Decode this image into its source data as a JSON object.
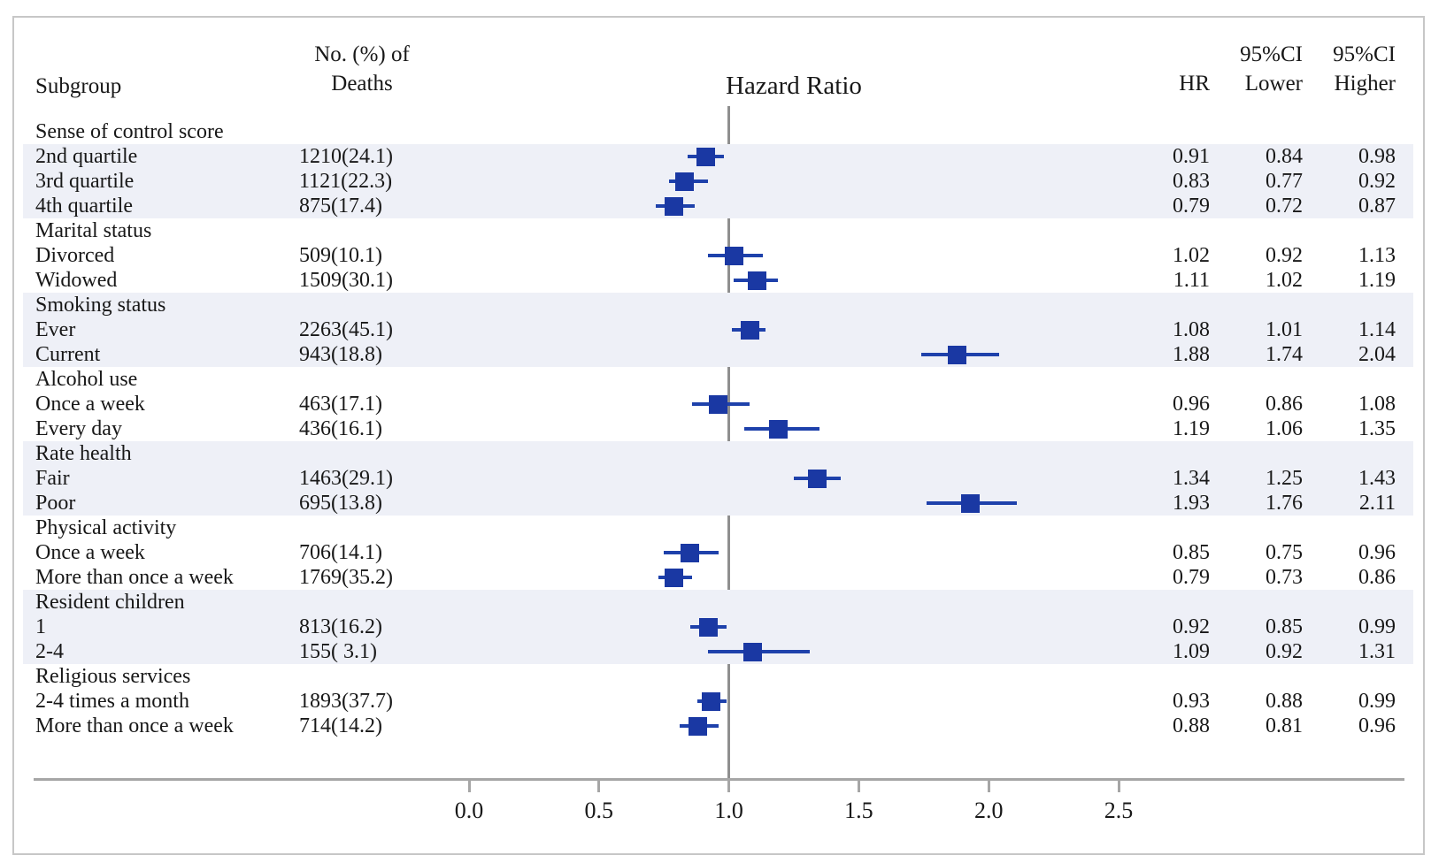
{
  "columns": {
    "subgroup": "Subgroup",
    "deaths_line1": "No. (%) of",
    "deaths_line2": "Deaths",
    "hr": "HR",
    "ci": "95%CI",
    "lower": "Lower",
    "higher": "Higher"
  },
  "chart_data": {
    "type": "forest",
    "title": "Hazard Ratio",
    "x_axis": {
      "tick_labels": [
        "0.0",
        "0.5",
        "1.0",
        "1.5",
        "2.0",
        "2.5"
      ],
      "tick_values": [
        0,
        0.5,
        1.0,
        1.5,
        2.0,
        2.5
      ],
      "range_shown": [
        -0.85,
        2.6
      ],
      "reference_line": 1.0
    },
    "colors": {
      "marker": "#1a38a3",
      "ci_line": "#1e41ab",
      "stripe": "#eef0f7",
      "axis": "#a6a6a6",
      "reference_line": "#8f8f8f",
      "text": "#181818",
      "frame_border": "#c7c7c7"
    },
    "rows": [
      {
        "label": "Sense of control score",
        "group": true
      },
      {
        "label": "2nd quartile",
        "deaths": "1210(24.1)",
        "hr": "0.91",
        "lower": "0.84",
        "higher": "0.98"
      },
      {
        "label": "3rd quartile",
        "deaths": "1121(22.3)",
        "hr": "0.83",
        "lower": "0.77",
        "higher": "0.92"
      },
      {
        "label": "4th quartile",
        "deaths": "875(17.4)",
        "hr": "0.79",
        "lower": "0.72",
        "higher": "0.87"
      },
      {
        "label": "Marital status",
        "group": true
      },
      {
        "label": "Divorced",
        "deaths": "509(10.1)",
        "hr": "1.02",
        "lower": "0.92",
        "higher": "1.13"
      },
      {
        "label": "Widowed",
        "deaths": "1509(30.1)",
        "hr": "1.11",
        "lower": "1.02",
        "higher": "1.19"
      },
      {
        "label": "Smoking status",
        "group": true
      },
      {
        "label": "Ever",
        "deaths": "2263(45.1)",
        "hr": "1.08",
        "lower": "1.01",
        "higher": "1.14"
      },
      {
        "label": "Current",
        "deaths": "943(18.8)",
        "hr": "1.88",
        "lower": "1.74",
        "higher": "2.04"
      },
      {
        "label": "Alcohol use",
        "group": true
      },
      {
        "label": "Once a week",
        "deaths": "463(17.1)",
        "hr": "0.96",
        "lower": "0.86",
        "higher": "1.08"
      },
      {
        "label": "Every day",
        "deaths": "436(16.1)",
        "hr": "1.19",
        "lower": "1.06",
        "higher": "1.35"
      },
      {
        "label": "Rate health",
        "group": true
      },
      {
        "label": "Fair",
        "deaths": "1463(29.1)",
        "hr": "1.34",
        "lower": "1.25",
        "higher": "1.43"
      },
      {
        "label": "Poor",
        "deaths": "695(13.8)",
        "hr": "1.93",
        "lower": "1.76",
        "higher": "2.11"
      },
      {
        "label": "Physical activity",
        "group": true
      },
      {
        "label": "Once a week",
        "deaths": "706(14.1)",
        "hr": "0.85",
        "lower": "0.75",
        "higher": "0.96"
      },
      {
        "label": "More than once a week",
        "deaths": "1769(35.2)",
        "hr": "0.79",
        "lower": "0.73",
        "higher": "0.86"
      },
      {
        "label": "Resident children",
        "group": true
      },
      {
        "label": "1",
        "deaths": "813(16.2)",
        "hr": "0.92",
        "lower": "0.85",
        "higher": "0.99"
      },
      {
        "label": "2-4",
        "deaths": "155( 3.1)",
        "hr": "1.09",
        "lower": "0.92",
        "higher": "1.31"
      },
      {
        "label": "Religious services",
        "group": true
      },
      {
        "label": "2-4 times a month",
        "deaths": "1893(37.7)",
        "hr": "0.93",
        "lower": "0.88",
        "higher": "0.99"
      },
      {
        "label": "More than once a week",
        "deaths": "714(14.2)",
        "hr": "0.88",
        "lower": "0.81",
        "higher": "0.96"
      }
    ]
  }
}
